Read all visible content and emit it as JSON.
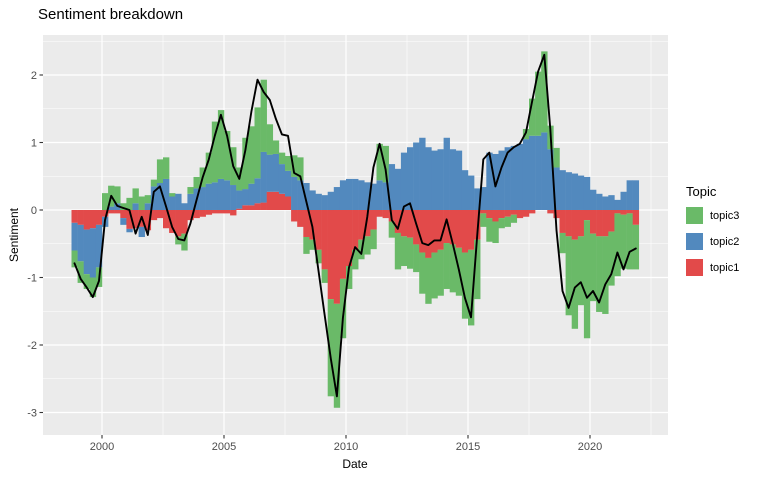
{
  "chart_data": {
    "type": "bar",
    "subtype": "diverging-stacked-columns-with-line-overlay",
    "title": "Sentiment breakdown",
    "xlabel": "Date",
    "ylabel": "Sentiment",
    "legend": {
      "title": "Topic",
      "position": "right",
      "items": [
        {
          "label": "topic3",
          "series": "topic3"
        },
        {
          "label": "topic2",
          "series": "topic2"
        },
        {
          "label": "topic1",
          "series": "topic1"
        }
      ]
    },
    "axes": {
      "x_domain": [
        1997.58,
        2023.2
      ],
      "y_domain": [
        -3.33,
        2.59
      ],
      "x_tick_values": [
        2000,
        2005,
        2010,
        2015,
        2020
      ],
      "x_tick_labels": [
        "2000",
        "2005",
        "2010",
        "2015",
        "2020"
      ],
      "x_minor_values": [
        2002.5,
        2007.5,
        2012.5,
        2017.5,
        2022.5
      ],
      "y_tick_values": [
        2,
        1,
        0,
        -1,
        -2,
        -3
      ],
      "y_tick_labels": [
        "2",
        "1",
        "0",
        "-1",
        "-2",
        "-3"
      ],
      "y_minor_values": [
        2.5,
        1.5,
        0.5,
        -0.5,
        -1.5,
        -2.5
      ],
      "grid": true
    },
    "colors": {
      "panel_background": "#EBEBEB",
      "grid_major": "#FFFFFF",
      "grid_minor": "#FFFFFF",
      "tick_text": "#4D4D4D",
      "tick_mark": "#333333",
      "line": "#000000"
    },
    "bar_unit": "quarter",
    "first_bar_start_year": 1998.75,
    "stack_order": [
      "topic1",
      "topic2",
      "topic3"
    ],
    "categories": [
      "1998Q4",
      "1999Q1",
      "1999Q2",
      "1999Q3",
      "1999Q4",
      "2000Q1",
      "2000Q2",
      "2000Q3",
      "2000Q4",
      "2001Q1",
      "2001Q2",
      "2001Q3",
      "2001Q4",
      "2002Q1",
      "2002Q2",
      "2002Q3",
      "2002Q4",
      "2003Q1",
      "2003Q2",
      "2003Q3",
      "2003Q4",
      "2004Q1",
      "2004Q2",
      "2004Q3",
      "2004Q4",
      "2005Q1",
      "2005Q2",
      "2005Q3",
      "2005Q4",
      "2006Q1",
      "2006Q2",
      "2006Q3",
      "2006Q4",
      "2007Q1",
      "2007Q2",
      "2007Q3",
      "2007Q4",
      "2008Q1",
      "2008Q2",
      "2008Q3",
      "2008Q4",
      "2009Q1",
      "2009Q2",
      "2009Q3",
      "2009Q4",
      "2010Q1",
      "2010Q2",
      "2010Q3",
      "2010Q4",
      "2011Q1",
      "2011Q2",
      "2011Q3",
      "2011Q4",
      "2012Q1",
      "2012Q2",
      "2012Q3",
      "2012Q4",
      "2013Q1",
      "2013Q2",
      "2013Q3",
      "2013Q4",
      "2014Q1",
      "2014Q2",
      "2014Q3",
      "2014Q4",
      "2015Q1",
      "2015Q2",
      "2015Q3",
      "2015Q4",
      "2016Q1",
      "2016Q2",
      "2016Q3",
      "2016Q4",
      "2017Q1",
      "2017Q2",
      "2017Q3",
      "2017Q4",
      "2018Q1",
      "2018Q2",
      "2018Q3",
      "2018Q4",
      "2019Q1",
      "2019Q2",
      "2019Q3",
      "2019Q4",
      "2020Q1",
      "2020Q2",
      "2020Q3",
      "2020Q4",
      "2021Q1",
      "2021Q2",
      "2021Q3",
      "2021Q4"
    ],
    "series": [
      {
        "name": "topic3",
        "color": "#6ABA68",
        "values": [
          -0.25,
          -0.32,
          -0.22,
          -0.29,
          -0.29,
          0.25,
          0.31,
          0.25,
          0.1,
          0.18,
          0.22,
          0.2,
          0.12,
          0.1,
          0.35,
          0.32,
          0.05,
          -0.12,
          -0.25,
          0.1,
          0.17,
          0.29,
          0.46,
          0.9,
          1.02,
          0.73,
          0.56,
          0.34,
          0.76,
          0.85,
          1.05,
          1.07,
          0.45,
          0.2,
          0.17,
          0.22,
          0.32,
          0.34,
          -0.25,
          -0.15,
          -0.2,
          -0.2,
          -1.44,
          -1.54,
          -0.88,
          -0.34,
          -0.29,
          -0.29,
          -0.27,
          -0.29,
          0.54,
          0.54,
          -0.24,
          -0.54,
          -0.44,
          -0.46,
          -0.41,
          -0.61,
          -0.68,
          -0.68,
          -0.68,
          -0.68,
          -0.71,
          -0.71,
          -0.98,
          -1.12,
          -0.88,
          -0.2,
          -0.35,
          -0.32,
          -0.15,
          -0.15,
          -0.12,
          0.0,
          0.15,
          0.55,
          0.95,
          1.2,
          0.35,
          0.29,
          -0.3,
          -1.17,
          -1.32,
          -1.02,
          -1.75,
          -1.0,
          -1.12,
          -1.15,
          -0.8,
          -0.93,
          -0.8,
          -0.83,
          -0.66
        ]
      },
      {
        "name": "topic2",
        "color": "#5289BE",
        "values": [
          -0.41,
          -0.54,
          -0.66,
          -0.73,
          -0.63,
          -0.15,
          0.05,
          0.1,
          -0.1,
          -0.05,
          0.1,
          -0.15,
          0.1,
          0.35,
          0.4,
          0.46,
          0.2,
          0.24,
          0.1,
          0.24,
          0.32,
          0.34,
          0.39,
          0.41,
          0.46,
          0.44,
          0.37,
          0.27,
          0.24,
          0.32,
          0.37,
          0.75,
          0.55,
          0.56,
          0.44,
          0.38,
          0.49,
          0.44,
          0.4,
          0.29,
          0.24,
          0.22,
          0.27,
          0.34,
          0.44,
          0.46,
          0.46,
          0.44,
          0.41,
          0.39,
          0.44,
          0.41,
          0.68,
          0.61,
          0.85,
          0.93,
          1.0,
          1.07,
          0.93,
          0.88,
          0.9,
          1.07,
          0.9,
          0.88,
          0.59,
          0.51,
          0.32,
          0.34,
          0.85,
          0.83,
          0.88,
          0.93,
          0.95,
          0.98,
          1.05,
          1.1,
          1.1,
          1.15,
          0.9,
          0.63,
          0.59,
          0.56,
          0.54,
          0.51,
          0.49,
          0.3,
          0.24,
          0.2,
          0.22,
          0.15,
          0.27,
          0.44,
          0.44
        ]
      },
      {
        "name": "topic1",
        "color": "#E24A4A",
        "values": [
          -0.19,
          -0.22,
          -0.29,
          -0.27,
          -0.22,
          -0.1,
          -0.05,
          -0.05,
          -0.12,
          -0.28,
          -0.27,
          -0.25,
          -0.3,
          -0.15,
          -0.12,
          -0.27,
          -0.34,
          -0.39,
          -0.35,
          -0.15,
          -0.12,
          -0.1,
          -0.07,
          -0.05,
          -0.05,
          -0.05,
          -0.08,
          0.02,
          0.07,
          0.07,
          0.1,
          0.11,
          0.27,
          0.27,
          0.24,
          0.2,
          -0.17,
          -0.25,
          -0.4,
          -0.44,
          -0.59,
          -0.88,
          -1.32,
          -1.39,
          -1.02,
          -0.83,
          -0.59,
          -0.44,
          -0.39,
          -0.29,
          -0.1,
          -0.12,
          -0.17,
          -0.34,
          -0.39,
          -0.41,
          -0.51,
          -0.63,
          -0.71,
          -0.63,
          -0.59,
          -0.49,
          -0.51,
          -0.56,
          -0.63,
          -0.59,
          -0.44,
          -0.05,
          -0.12,
          -0.17,
          -0.12,
          -0.1,
          -0.07,
          -0.12,
          -0.1,
          -0.05,
          0.0,
          0.0,
          -0.05,
          -0.12,
          -0.34,
          -0.39,
          -0.44,
          -0.39,
          -0.15,
          -0.35,
          -0.39,
          -0.39,
          -0.32,
          -0.05,
          -0.07,
          -0.05,
          -0.22
        ]
      }
    ],
    "line_series": {
      "name": "overlay-line",
      "color": "#000000",
      "values": [
        -0.79,
        -1.02,
        -1.15,
        -1.29,
        -1.05,
        -0.15,
        0.21,
        0.06,
        0.03,
        0.0,
        -0.35,
        -0.1,
        -0.37,
        0.27,
        0.35,
        0.05,
        -0.25,
        -0.43,
        -0.45,
        -0.2,
        0.15,
        0.48,
        0.75,
        1.1,
        1.41,
        1.1,
        0.65,
        0.46,
        0.88,
        1.46,
        1.93,
        1.75,
        1.63,
        1.35,
        1.12,
        1.1,
        0.55,
        0.5,
        0.12,
        -0.25,
        -0.9,
        -1.55,
        -2.2,
        -2.76,
        -1.6,
        -0.85,
        -0.55,
        -0.65,
        -0.1,
        0.63,
        0.98,
        0.6,
        -0.15,
        -0.28,
        0.05,
        0.1,
        -0.2,
        -0.49,
        -0.52,
        -0.45,
        -0.45,
        -0.14,
        -0.5,
        -0.88,
        -1.3,
        -1.59,
        -0.4,
        0.75,
        0.85,
        0.35,
        0.63,
        0.85,
        0.93,
        0.98,
        1.15,
        1.6,
        2.05,
        2.3,
        1.2,
        -0.3,
        -1.2,
        -1.45,
        -1.15,
        -1.07,
        -1.3,
        -1.2,
        -1.37,
        -1.1,
        -0.95,
        -0.63,
        -0.88,
        -0.62,
        -0.57
      ]
    }
  }
}
